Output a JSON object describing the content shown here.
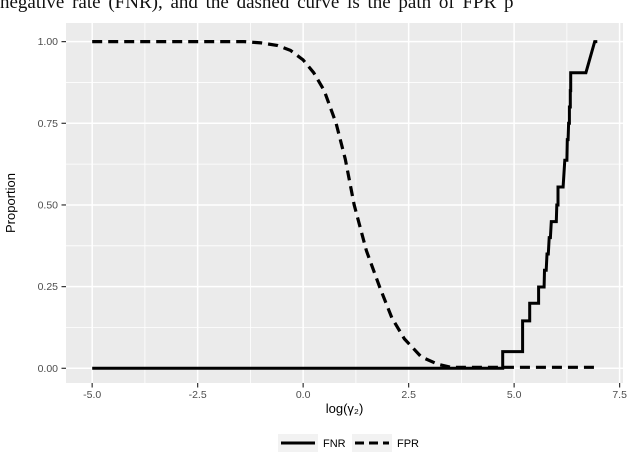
{
  "caption_fragment": "negative rate (FNR), and the dashed curve is the path of FPR p",
  "style": {
    "panel_bg": "#EBEBEB",
    "grid_color": "#FFFFFF",
    "tick_mark_color": "#333333",
    "tick_label_color": "#4D4D4D",
    "axis_title_color": "#000000",
    "line_color": "#000000",
    "legend_key_bg": "#F2F2F2",
    "page_bg": "#FFFFFF"
  },
  "chart_data": {
    "type": "line",
    "title": "",
    "xlabel": "log(γ₂)",
    "ylabel": "Proportion",
    "xlim": [
      -5.62,
      7.58
    ],
    "ylim": [
      -0.045,
      1.057
    ],
    "grid": true,
    "legend_position": "bottom",
    "x_ticks": [
      -5.0,
      -2.5,
      0.0,
      2.5,
      5.0,
      7.5
    ],
    "x_tick_labels": [
      "-5.0",
      "-2.5",
      "0.0",
      "2.5",
      "5.0",
      "7.5"
    ],
    "x_minor_ticks": [
      -3.75,
      -1.25,
      1.25,
      3.75,
      6.25
    ],
    "y_ticks": [
      0.0,
      0.25,
      0.5,
      0.75,
      1.0
    ],
    "y_tick_labels": [
      "0.00",
      "0.25",
      "0.50",
      "0.75",
      "1.00"
    ],
    "y_minor_ticks": [
      0.125,
      0.375,
      0.625,
      0.875
    ],
    "series": [
      {
        "name": "FPR",
        "linestyle": "dashed",
        "points": [
          [
            -5.0,
            1.0
          ],
          [
            -1.4,
            1.0
          ],
          [
            -1.0,
            0.996
          ],
          [
            -0.6,
            0.988
          ],
          [
            -0.3,
            0.973
          ],
          [
            0.0,
            0.944
          ],
          [
            0.25,
            0.905
          ],
          [
            0.5,
            0.85
          ],
          [
            0.78,
            0.75
          ],
          [
            1.0,
            0.64
          ],
          [
            1.21,
            0.5
          ],
          [
            1.5,
            0.36
          ],
          [
            1.81,
            0.25
          ],
          [
            2.1,
            0.155
          ],
          [
            2.4,
            0.09
          ],
          [
            2.8,
            0.035
          ],
          [
            3.2,
            0.012
          ],
          [
            3.5,
            0.003
          ],
          [
            6.91,
            0.003
          ]
        ]
      },
      {
        "name": "FNR",
        "linestyle": "solid",
        "points": [
          [
            -5.0,
            0.0
          ],
          [
            4.73,
            0.0
          ],
          [
            4.73,
            0.051
          ],
          [
            5.2,
            0.051
          ],
          [
            5.2,
            0.145
          ],
          [
            5.37,
            0.145
          ],
          [
            5.37,
            0.199
          ],
          [
            5.58,
            0.199
          ],
          [
            5.58,
            0.249
          ],
          [
            5.71,
            0.249
          ],
          [
            5.72,
            0.3
          ],
          [
            5.76,
            0.3
          ],
          [
            5.78,
            0.35
          ],
          [
            5.81,
            0.35
          ],
          [
            5.83,
            0.4
          ],
          [
            5.86,
            0.4
          ],
          [
            5.88,
            0.449
          ],
          [
            6.0,
            0.449
          ],
          [
            6.01,
            0.5
          ],
          [
            6.04,
            0.5
          ],
          [
            6.04,
            0.555
          ],
          [
            6.16,
            0.555
          ],
          [
            6.2,
            0.637
          ],
          [
            6.25,
            0.637
          ],
          [
            6.26,
            0.7
          ],
          [
            6.28,
            0.7
          ],
          [
            6.29,
            0.75
          ],
          [
            6.31,
            0.75
          ],
          [
            6.31,
            0.8
          ],
          [
            6.33,
            0.8
          ],
          [
            6.33,
            0.85
          ],
          [
            6.34,
            0.85
          ],
          [
            6.34,
            0.905
          ],
          [
            6.7,
            0.905
          ],
          [
            6.91,
            1.0
          ],
          [
            6.97,
            1.0
          ]
        ]
      }
    ],
    "legend": [
      {
        "label": "FNR",
        "linestyle": "solid"
      },
      {
        "label": "FPR",
        "linestyle": "dashed"
      }
    ]
  }
}
